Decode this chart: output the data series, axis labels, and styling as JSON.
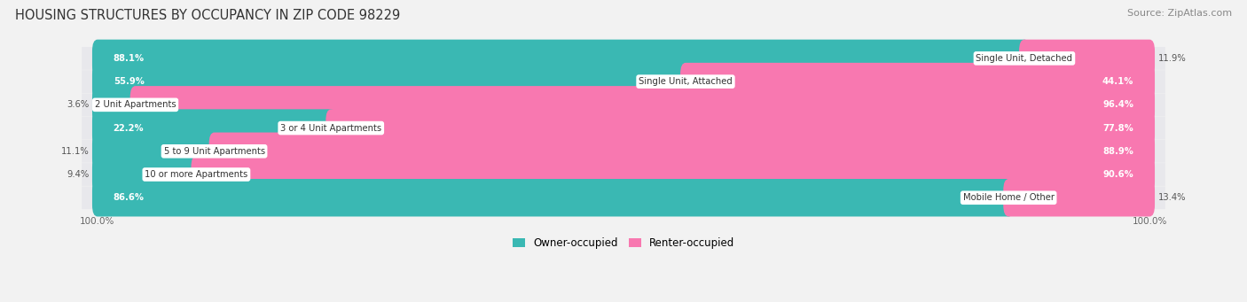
{
  "title": "HOUSING STRUCTURES BY OCCUPANCY IN ZIP CODE 98229",
  "source": "Source: ZipAtlas.com",
  "categories": [
    "Single Unit, Detached",
    "Single Unit, Attached",
    "2 Unit Apartments",
    "3 or 4 Unit Apartments",
    "5 to 9 Unit Apartments",
    "10 or more Apartments",
    "Mobile Home / Other"
  ],
  "owner_pct": [
    88.1,
    55.9,
    3.6,
    22.2,
    11.1,
    9.4,
    86.6
  ],
  "renter_pct": [
    11.9,
    44.1,
    96.4,
    77.8,
    88.9,
    90.6,
    13.4
  ],
  "owner_color": "#3ab8b3",
  "renter_color": "#f878b0",
  "owner_label": "Owner-occupied",
  "renter_label": "Renter-occupied",
  "bg_color": "#f2f2f2",
  "row_bg_color": "#e8e8ec",
  "title_fontsize": 10.5,
  "source_fontsize": 8,
  "bar_height": 0.62,
  "total_width": 100
}
